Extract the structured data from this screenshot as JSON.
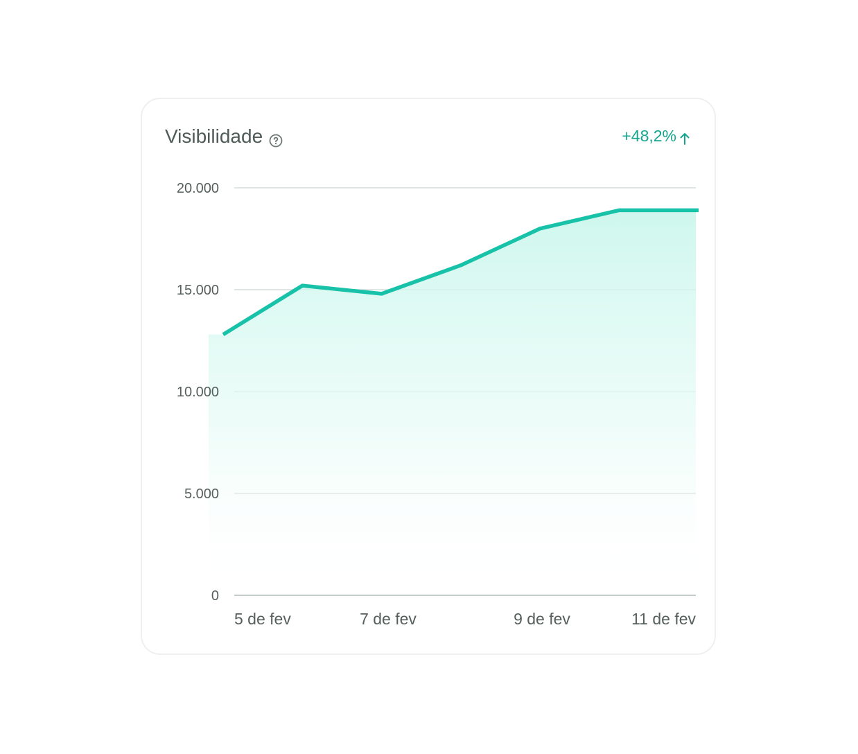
{
  "card": {
    "title": "Visibilidade",
    "change": "+48,2%",
    "help_icon": "question-circle-icon",
    "trend_icon": "arrow-up-icon"
  },
  "colors": {
    "line": "#17c2a8",
    "change": "#14a58e",
    "grid": "#d5dbda",
    "text": "#4f5b58"
  },
  "chart_data": {
    "type": "area",
    "title": "Visibilidade",
    "xlabel": "",
    "ylabel": "",
    "x_ticks": [
      "5 de fev",
      "7 de fev",
      "9 de fev",
      "11 de fev"
    ],
    "y_ticks": [
      "0",
      "5.000",
      "10.000",
      "15.000",
      "20.000"
    ],
    "y_tick_values": [
      0,
      5000,
      10000,
      15000,
      20000
    ],
    "ylim": [
      0,
      20000
    ],
    "grid": true,
    "series": [
      {
        "values": [
          12800,
          15200,
          14800,
          16200,
          18000,
          18900,
          18900
        ]
      }
    ]
  }
}
